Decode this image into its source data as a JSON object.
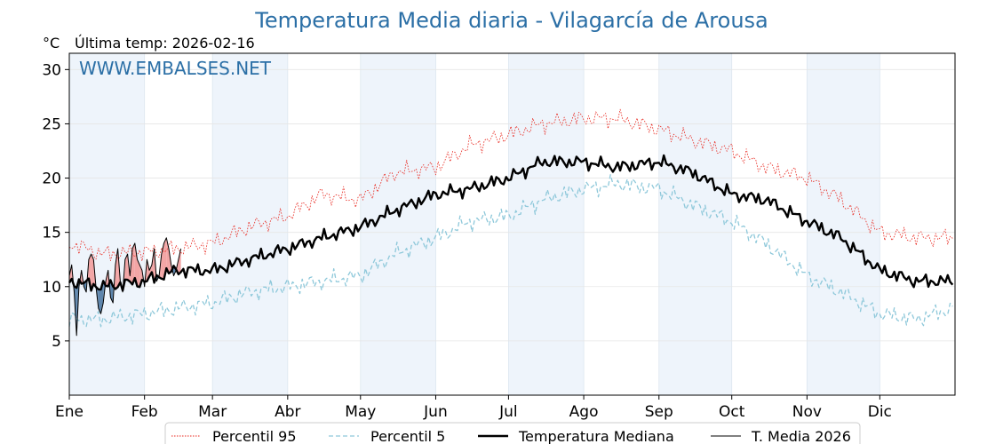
{
  "chart_data": {
    "type": "line",
    "title": "Temperatura Media diaria - Vilagarcía de Arousa",
    "subtitle": "Última temp: 2026-02-16",
    "unit_label": "°C",
    "watermark": "WWW.EMBALSES.NET",
    "xlabel": "",
    "ylabel": "",
    "ylim": [
      0,
      31.5
    ],
    "y_ticks": [
      5,
      10,
      15,
      20,
      25,
      30
    ],
    "x_tick_labels": [
      "Ene",
      "Feb",
      "Mar",
      "Abr",
      "May",
      "Jun",
      "Jul",
      "Ago",
      "Sep",
      "Oct",
      "Nov",
      "Dic"
    ],
    "grid": true,
    "legend_position": "bottom",
    "colors": {
      "p95": "#e8261d",
      "p5": "#8ec8da",
      "median": "#000000",
      "media2026": "#000000",
      "above_fill": "#f2a5a5",
      "below_fill": "#5e86ad",
      "band": "#eef4fb",
      "title": "#2b6fa6"
    },
    "x_unit": "day_of_year",
    "x_anchor_days": [
      1,
      15,
      32,
      45,
      60,
      75,
      91,
      105,
      121,
      135,
      152,
      166,
      182,
      196,
      213,
      227,
      244,
      258,
      274,
      288,
      305,
      319,
      335,
      350,
      365
    ],
    "series": [
      {
        "key": "p95",
        "name": "Percentil 95",
        "style": "dotted",
        "anchors": [
          14.0,
          13.0,
          13.2,
          13.5,
          14.0,
          15.5,
          16.5,
          18.5,
          18.0,
          20.5,
          21.0,
          23.0,
          24.0,
          25.0,
          25.5,
          25.5,
          24.5,
          23.5,
          22.5,
          21.0,
          20.0,
          18.0,
          15.0,
          14.5,
          14.5
        ]
      },
      {
        "key": "p5",
        "name": "Percentil 5",
        "style": "dashed",
        "anchors": [
          7.0,
          7.0,
          7.5,
          8.0,
          8.5,
          9.5,
          10.0,
          10.5,
          11.0,
          13.0,
          14.5,
          16.0,
          16.5,
          18.0,
          19.0,
          19.5,
          19.0,
          17.5,
          16.0,
          14.0,
          11.0,
          9.5,
          7.5,
          7.0,
          8.0
        ]
      },
      {
        "key": "median",
        "name": "Temperatura Mediana",
        "style": "bold",
        "anchors": [
          10.5,
          10.0,
          10.5,
          11.5,
          11.5,
          12.5,
          13.5,
          14.5,
          15.5,
          17.0,
          18.5,
          19.0,
          20.0,
          21.5,
          21.5,
          21.0,
          21.5,
          20.5,
          18.5,
          18.0,
          16.0,
          14.5,
          11.5,
          10.5,
          10.5
        ]
      },
      {
        "key": "media2026",
        "name": "T. Media 2026",
        "style": "thin",
        "x": [
          1,
          2,
          3,
          4,
          5,
          6,
          7,
          8,
          9,
          10,
          11,
          12,
          13,
          14,
          15,
          16,
          17,
          18,
          19,
          20,
          21,
          22,
          23,
          24,
          25,
          26,
          27,
          28,
          29,
          30,
          31,
          32,
          33,
          34,
          35,
          36,
          37,
          38,
          39,
          40,
          41,
          42,
          43,
          44,
          45,
          46,
          47
        ],
        "values": [
          11.0,
          12.0,
          9.5,
          5.5,
          10.0,
          11.5,
          10.0,
          9.5,
          12.5,
          13.0,
          12.5,
          10.0,
          8.0,
          7.5,
          8.5,
          10.5,
          11.5,
          9.0,
          8.5,
          12.0,
          13.5,
          10.5,
          9.5,
          12.5,
          13.0,
          11.0,
          13.5,
          14.0,
          12.5,
          12.0,
          11.5,
          10.0,
          12.5,
          11.5,
          12.0,
          13.5,
          10.5,
          11.0,
          13.0,
          14.0,
          14.5,
          13.5,
          12.0,
          11.0,
          11.5,
          12.5,
          13.5
        ]
      }
    ]
  }
}
